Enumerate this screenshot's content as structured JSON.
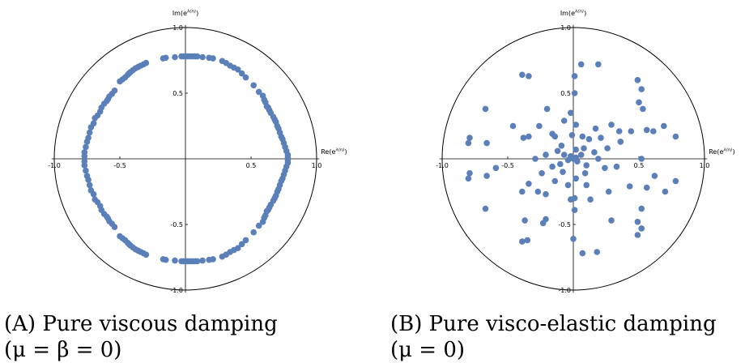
{
  "page": {
    "background": "#ffffff"
  },
  "chart_data": [
    {
      "type": "scatter",
      "panel_label": "(A)",
      "caption": "Pure viscous damping",
      "caption_params": "(μ = β = 0)",
      "xlabel": "Re(e^{λ(n)})",
      "ylabel": "Im(e^{λ(n)})",
      "xlim": [
        -1.0,
        1.0
      ],
      "ylim": [
        -1.0,
        1.0
      ],
      "x_ticks": [
        "-1.0",
        "-0.5",
        "0.5",
        "1.0"
      ],
      "y_ticks": [
        "1.0",
        "0.5",
        "-0.5",
        "-1.0"
      ],
      "unit_circle": true,
      "grid": false,
      "marker_color": "#5b7fb9",
      "points": [
        [
          -0.03,
          0.78
        ],
        [
          -0.01,
          0.78
        ],
        [
          0.01,
          0.78
        ],
        [
          0.03,
          0.78
        ],
        [
          0.05,
          0.78
        ],
        [
          0.07,
          0.78
        ],
        [
          0.09,
          0.78
        ],
        [
          -0.08,
          0.775
        ],
        [
          0.13,
          0.775
        ],
        [
          -0.15,
          0.77
        ],
        [
          -0.17,
          0.765
        ],
        [
          0.18,
          0.77
        ],
        [
          0.21,
          0.765
        ],
        [
          -0.3,
          0.73
        ],
        [
          -0.32,
          0.72
        ],
        [
          -0.34,
          0.71
        ],
        [
          -0.36,
          0.7
        ],
        [
          -0.38,
          0.69
        ],
        [
          -0.4,
          0.675
        ],
        [
          -0.42,
          0.66
        ],
        [
          -0.43,
          0.65
        ],
        [
          -0.44,
          0.64
        ],
        [
          -0.46,
          0.62
        ],
        [
          -0.48,
          0.605
        ],
        [
          -0.5,
          0.59
        ],
        [
          0.28,
          0.745
        ],
        [
          0.31,
          0.73
        ],
        [
          0.34,
          0.71
        ],
        [
          0.37,
          0.695
        ],
        [
          0.4,
          0.68
        ],
        [
          0.43,
          0.65
        ],
        [
          0.46,
          0.62
        ],
        [
          -0.54,
          0.52
        ],
        [
          -0.56,
          0.495
        ],
        [
          -0.58,
          0.475
        ],
        [
          -0.59,
          0.455
        ],
        [
          -0.6,
          0.44
        ],
        [
          -0.62,
          0.42
        ],
        [
          -0.64,
          0.39
        ],
        [
          -0.65,
          0.36
        ],
        [
          -0.67,
          0.33
        ],
        [
          -0.69,
          0.31
        ],
        [
          -0.7,
          0.27
        ],
        [
          -0.72,
          0.24
        ],
        [
          -0.73,
          0.2
        ],
        [
          -0.74,
          0.16
        ],
        [
          -0.75,
          0.13
        ],
        [
          -0.76,
          0.09
        ],
        [
          -0.77,
          0.05
        ],
        [
          -0.77,
          0.02
        ],
        [
          0.52,
          0.56
        ],
        [
          0.56,
          0.51
        ],
        [
          0.59,
          0.48
        ],
        [
          0.6,
          0.45
        ],
        [
          0.61,
          0.43
        ],
        [
          0.62,
          0.4
        ],
        [
          0.63,
          0.39
        ],
        [
          0.64,
          0.37
        ],
        [
          0.65,
          0.35
        ],
        [
          0.67,
          0.32
        ],
        [
          0.68,
          0.3
        ],
        [
          0.69,
          0.28
        ],
        [
          0.7,
          0.25
        ],
        [
          0.71,
          0.23
        ],
        [
          0.72,
          0.2
        ],
        [
          0.73,
          0.17
        ],
        [
          0.74,
          0.15
        ],
        [
          0.75,
          0.12
        ],
        [
          0.76,
          0.09
        ],
        [
          0.77,
          0.06
        ],
        [
          0.78,
          0.03
        ],
        [
          0.78,
          0.01
        ],
        [
          -0.77,
          -0.02
        ],
        [
          -0.77,
          -0.05
        ],
        [
          -0.76,
          -0.09
        ],
        [
          -0.75,
          -0.13
        ],
        [
          -0.74,
          -0.16
        ],
        [
          -0.73,
          -0.2
        ],
        [
          -0.72,
          -0.24
        ],
        [
          -0.7,
          -0.27
        ],
        [
          -0.69,
          -0.31
        ],
        [
          -0.67,
          -0.33
        ],
        [
          -0.65,
          -0.36
        ],
        [
          -0.64,
          -0.39
        ],
        [
          -0.62,
          -0.42
        ],
        [
          -0.6,
          -0.44
        ],
        [
          -0.59,
          -0.455
        ],
        [
          -0.58,
          -0.475
        ],
        [
          -0.56,
          -0.495
        ],
        [
          -0.54,
          -0.52
        ],
        [
          0.78,
          -0.01
        ],
        [
          0.78,
          -0.03
        ],
        [
          0.77,
          -0.06
        ],
        [
          0.76,
          -0.09
        ],
        [
          0.75,
          -0.12
        ],
        [
          0.74,
          -0.15
        ],
        [
          0.73,
          -0.17
        ],
        [
          0.72,
          -0.2
        ],
        [
          0.71,
          -0.23
        ],
        [
          0.7,
          -0.25
        ],
        [
          0.69,
          -0.28
        ],
        [
          0.68,
          -0.3
        ],
        [
          0.67,
          -0.32
        ],
        [
          0.65,
          -0.35
        ],
        [
          0.64,
          -0.37
        ],
        [
          0.63,
          -0.39
        ],
        [
          0.62,
          -0.4
        ],
        [
          0.61,
          -0.43
        ],
        [
          0.6,
          -0.45
        ],
        [
          0.59,
          -0.48
        ],
        [
          0.56,
          -0.51
        ],
        [
          0.52,
          -0.56
        ],
        [
          -0.5,
          -0.59
        ],
        [
          -0.48,
          -0.605
        ],
        [
          -0.46,
          -0.62
        ],
        [
          -0.44,
          -0.64
        ],
        [
          -0.43,
          -0.65
        ],
        [
          -0.42,
          -0.66
        ],
        [
          -0.4,
          -0.675
        ],
        [
          -0.38,
          -0.69
        ],
        [
          -0.36,
          -0.7
        ],
        [
          -0.34,
          -0.71
        ],
        [
          -0.32,
          -0.72
        ],
        [
          -0.3,
          -0.73
        ],
        [
          0.46,
          -0.62
        ],
        [
          0.43,
          -0.65
        ],
        [
          0.4,
          -0.68
        ],
        [
          0.37,
          -0.695
        ],
        [
          0.34,
          -0.71
        ],
        [
          0.31,
          -0.73
        ],
        [
          0.28,
          -0.745
        ],
        [
          -0.17,
          -0.765
        ],
        [
          -0.15,
          -0.77
        ],
        [
          -0.08,
          -0.775
        ],
        [
          0.13,
          -0.775
        ],
        [
          0.18,
          -0.77
        ],
        [
          0.21,
          -0.765
        ],
        [
          -0.03,
          -0.78
        ],
        [
          -0.01,
          -0.78
        ],
        [
          0.01,
          -0.78
        ],
        [
          0.03,
          -0.78
        ],
        [
          0.05,
          -0.78
        ],
        [
          0.07,
          -0.78
        ],
        [
          0.09,
          -0.78
        ]
      ]
    },
    {
      "type": "scatter",
      "panel_label": "(B)",
      "caption": "Pure visco-elastic damping",
      "caption_params": "(μ = 0)",
      "xlabel": "Re(e^{λ(n)})",
      "ylabel": "Im(e^{λ(n)})",
      "xlim": [
        -1.0,
        1.0
      ],
      "ylim": [
        -1.0,
        1.0
      ],
      "x_ticks": [
        "-1.0",
        "-0.5",
        "0.5",
        "1.0"
      ],
      "y_ticks": [
        "1.0",
        "0.5",
        "-0.5",
        "-1.0"
      ],
      "unit_circle": true,
      "grid": false,
      "marker_color": "#5b7fb9",
      "points": [
        [
          0.06,
          0.72
        ],
        [
          0.19,
          0.72
        ],
        [
          -0.39,
          0.64
        ],
        [
          -0.34,
          0.63
        ],
        [
          0.01,
          0.63
        ],
        [
          0.49,
          0.6
        ],
        [
          0.52,
          0.53
        ],
        [
          0.01,
          0.5
        ],
        [
          0.5,
          0.43
        ],
        [
          -0.67,
          0.38
        ],
        [
          -0.2,
          0.38
        ],
        [
          -0.02,
          0.35
        ],
        [
          0.53,
          0.38
        ],
        [
          -0.07,
          0.29
        ],
        [
          0.02,
          0.26
        ],
        [
          0.29,
          0.26
        ],
        [
          0.17,
          0.23
        ],
        [
          -0.46,
          0.25
        ],
        [
          -0.26,
          0.25
        ],
        [
          0.69,
          0.25
        ],
        [
          -0.16,
          0.19
        ],
        [
          -0.14,
          0.17
        ],
        [
          0.35,
          0.21
        ],
        [
          0.44,
          0.21
        ],
        [
          0.56,
          0.22
        ],
        [
          0.61,
          0.21
        ],
        [
          -0.79,
          0.16
        ],
        [
          -0.8,
          0.12
        ],
        [
          -0.66,
          0.12
        ],
        [
          -0.38,
          0.16
        ],
        [
          -0.34,
          0.17
        ],
        [
          -0.01,
          0.18
        ],
        [
          0.07,
          0.17
        ],
        [
          0.12,
          0.15
        ],
        [
          0.21,
          0.16
        ],
        [
          0.36,
          0.13
        ],
        [
          0.78,
          0.17
        ],
        [
          -0.09,
          0.1
        ],
        [
          0.02,
          0.07
        ],
        [
          0.08,
          0.08
        ],
        [
          -0.12,
          0.06
        ],
        [
          0.16,
          0.05
        ],
        [
          0.26,
          0.08
        ],
        [
          -0.21,
          0.03
        ],
        [
          -0.07,
          0.03
        ],
        [
          0.06,
          0.03
        ],
        [
          -0.02,
          0.02
        ],
        [
          0.02,
          0.01
        ],
        [
          0.0,
          0.0
        ],
        [
          -0.29,
          0.0
        ],
        [
          0.19,
          0.0
        ],
        [
          0.52,
          0.0
        ],
        [
          -0.04,
          -0.01
        ],
        [
          0.03,
          -0.02
        ],
        [
          -0.1,
          -0.04
        ],
        [
          0.1,
          -0.05
        ],
        [
          -0.16,
          -0.06
        ],
        [
          0.24,
          -0.07
        ],
        [
          -0.59,
          -0.07
        ],
        [
          0.33,
          -0.06
        ],
        [
          -0.24,
          -0.11
        ],
        [
          -0.08,
          -0.1
        ],
        [
          0.09,
          -0.11
        ],
        [
          -0.79,
          -0.11
        ],
        [
          -0.8,
          -0.15
        ],
        [
          0.78,
          -0.17
        ],
        [
          -0.66,
          -0.13
        ],
        [
          0.62,
          -0.13
        ],
        [
          0.56,
          -0.22
        ],
        [
          0.43,
          -0.21
        ],
        [
          0.02,
          -0.15
        ],
        [
          -0.14,
          -0.17
        ],
        [
          0.1,
          -0.2
        ],
        [
          -0.04,
          -0.2
        ],
        [
          -0.34,
          -0.19
        ],
        [
          -0.27,
          -0.25
        ],
        [
          -0.39,
          -0.25
        ],
        [
          0.27,
          -0.25
        ],
        [
          0.7,
          -0.25
        ],
        [
          -0.21,
          -0.27
        ],
        [
          -0.02,
          -0.31
        ],
        [
          0.01,
          -0.3
        ],
        [
          0.13,
          -0.31
        ],
        [
          -0.67,
          -0.38
        ],
        [
          0.01,
          -0.39
        ],
        [
          0.52,
          -0.38
        ],
        [
          -0.21,
          -0.46
        ],
        [
          -0.37,
          -0.47
        ],
        [
          -0.23,
          -0.49
        ],
        [
          0.29,
          -0.47
        ],
        [
          0.49,
          -0.48
        ],
        [
          0.52,
          -0.53
        ],
        [
          -0.39,
          -0.63
        ],
        [
          -0.35,
          -0.62
        ],
        [
          0.0,
          -0.61
        ],
        [
          0.49,
          -0.58
        ],
        [
          0.07,
          -0.72
        ],
        [
          0.18,
          -0.71
        ]
      ]
    }
  ]
}
